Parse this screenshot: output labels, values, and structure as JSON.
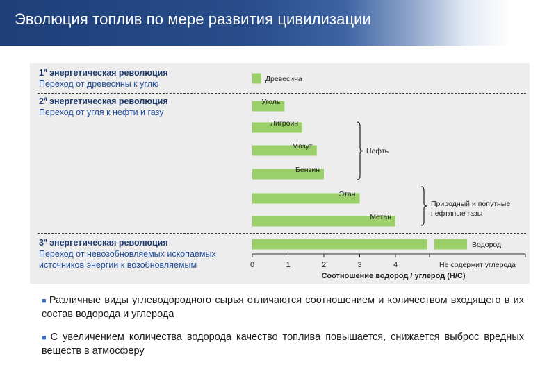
{
  "header": {
    "title": "Эволюция топлив по мере развития цивилизации"
  },
  "revolutions": [
    {
      "num": "1",
      "sup": "я",
      "title": "энергетическая революция",
      "subtitle": "Переход от древесины к углю"
    },
    {
      "num": "2",
      "sup": "я",
      "title": "энергетическая революция",
      "subtitle": "Переход от угля к нефти и газу"
    },
    {
      "num": "3",
      "sup": "я",
      "title": "энергетическая революция",
      "subtitle": "Переход от невозобновляемых ископаемых источников энергии к возобновляемым"
    }
  ],
  "chart_data": {
    "type": "bar",
    "orientation": "horizontal",
    "categories": [
      "Древесина",
      "Уголь",
      "Лигроин",
      "Мазут",
      "Бензин",
      "Этан",
      "Метан",
      "Водород"
    ],
    "values": [
      0.25,
      0.9,
      1.4,
      1.8,
      2.0,
      3.0,
      4.0,
      null
    ],
    "bar_color": "#9bcf6a",
    "xlabel": "Соотношение водород / углерод (Н/С)",
    "xticks": [
      "0",
      "1",
      "2",
      "3",
      "4"
    ],
    "xlim": [
      0,
      6
    ],
    "no_carbon_label": "Не содержит углерода",
    "groups": [
      {
        "label": "Нефть",
        "members": [
          "Лигроин",
          "Мазут",
          "Бензин"
        ]
      },
      {
        "label": "Природный и попутные нефтяные газы",
        "members": [
          "Этан",
          "Метан"
        ]
      }
    ]
  },
  "bullets": [
    "Различные виды углеводородного сырья отличаются соотношением и количеством входящего в их состав водорода и углерода",
    "С увеличением количества водорода качество топлива повышается, снижается выброс вредных веществ в атмосферу"
  ],
  "colors": {
    "header": "#284d8a",
    "accent": "#3a6fc1",
    "panel": "#ededed"
  }
}
